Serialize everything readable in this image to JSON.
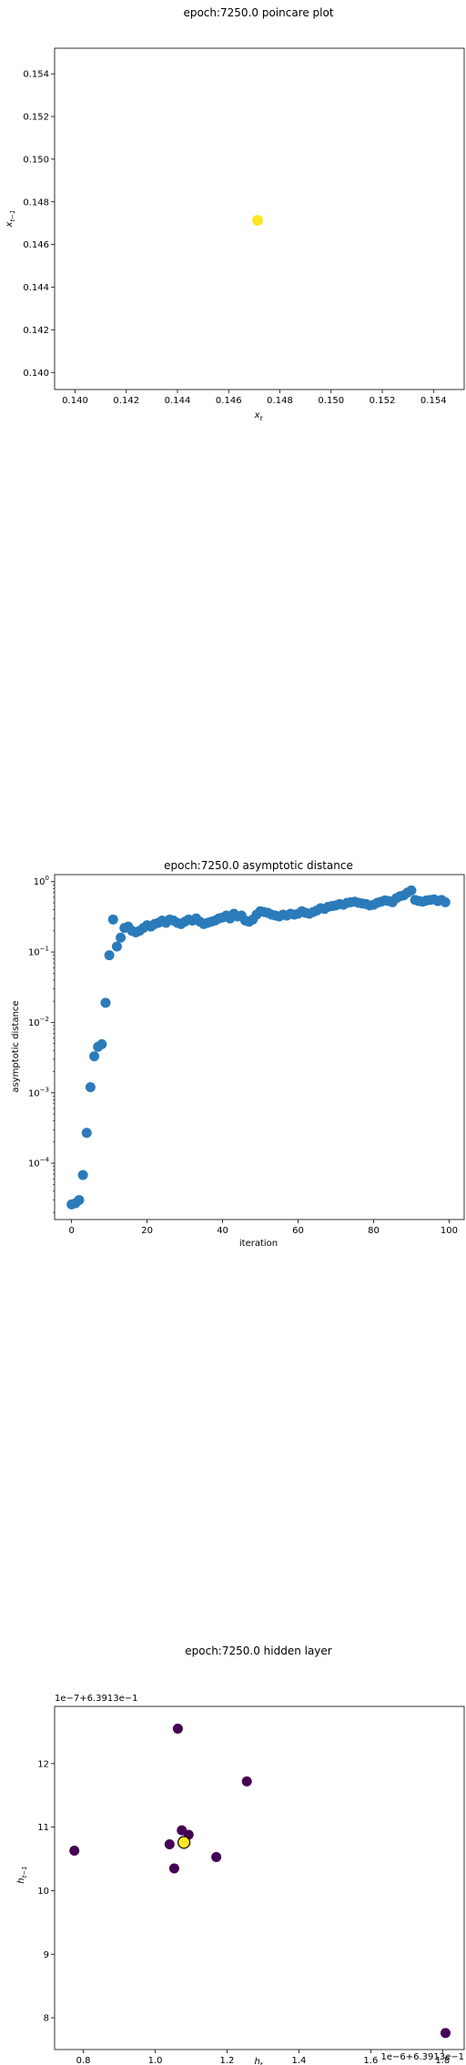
{
  "chart_data": [
    {
      "type": "scatter",
      "title": "epoch:7250.0 poincare plot",
      "xlabel_base": "x",
      "xlabel_sub": "t",
      "ylabel_base": "x",
      "ylabel_sub": "t−1",
      "xlim": [
        0.1392,
        0.1552
      ],
      "ylim": [
        0.1392,
        0.1552
      ],
      "xticks": [
        "0.140",
        "0.142",
        "0.144",
        "0.146",
        "0.148",
        "0.150",
        "0.152",
        "0.154"
      ],
      "yticks": [
        "0.140",
        "0.142",
        "0.144",
        "0.146",
        "0.148",
        "0.150",
        "0.152",
        "0.154"
      ],
      "xtick_values": [
        0.14,
        0.142,
        0.144,
        0.146,
        0.148,
        0.15,
        0.152,
        0.154
      ],
      "ytick_values": [
        0.14,
        0.142,
        0.144,
        0.146,
        0.148,
        0.15,
        0.152,
        0.154
      ],
      "points": [
        {
          "x": 0.14713,
          "y": 0.14713,
          "color": "#fde725"
        }
      ]
    },
    {
      "type": "scatter",
      "title": "epoch:7250.0 asymptotic distance",
      "xlabel": "iteration",
      "ylabel": "asymptotic distance",
      "y_scale": "log",
      "xlim": [
        -4.5,
        104
      ],
      "ylim_log10": [
        -4.8,
        0.1
      ],
      "xticks": [
        "0",
        "20",
        "40",
        "60",
        "80",
        "100"
      ],
      "xtick_values": [
        0,
        20,
        40,
        60,
        80,
        100
      ],
      "yticks": [
        {
          "base": "10",
          "exp": "−4",
          "log": -4
        },
        {
          "base": "10",
          "exp": "−3",
          "log": -3
        },
        {
          "base": "10",
          "exp": "−2",
          "log": -2
        },
        {
          "base": "10",
          "exp": "−1",
          "log": -1
        },
        {
          "base": "10",
          "exp": "0",
          "log": 0
        }
      ],
      "color": "#2b7bba",
      "x": [
        0,
        1,
        2,
        3,
        4,
        5,
        6,
        7,
        8,
        9,
        10,
        11,
        12,
        13,
        14,
        15,
        16,
        17,
        18,
        19,
        20,
        21,
        22,
        23,
        24,
        25,
        26,
        27,
        28,
        29,
        30,
        31,
        32,
        33,
        34,
        35,
        36,
        37,
        38,
        39,
        40,
        41,
        42,
        43,
        44,
        45,
        46,
        47,
        48,
        49,
        50,
        51,
        52,
        53,
        54,
        55,
        56,
        57,
        58,
        59,
        60,
        61,
        62,
        63,
        64,
        65,
        66,
        67,
        68,
        69,
        70,
        71,
        72,
        73,
        74,
        75,
        76,
        77,
        78,
        79,
        80,
        81,
        82,
        83,
        84,
        85,
        86,
        87,
        88,
        89,
        90,
        91,
        92,
        93,
        94,
        95,
        96,
        97,
        98,
        99
      ],
      "y": [
        2.6e-05,
        2.7e-05,
        3e-05,
        6.8e-05,
        0.00027,
        0.0012,
        0.0033,
        0.0045,
        0.0049,
        0.019,
        0.09,
        0.29,
        0.12,
        0.16,
        0.22,
        0.23,
        0.2,
        0.19,
        0.2,
        0.22,
        0.24,
        0.23,
        0.25,
        0.26,
        0.28,
        0.26,
        0.29,
        0.28,
        0.26,
        0.25,
        0.27,
        0.29,
        0.28,
        0.3,
        0.27,
        0.25,
        0.26,
        0.27,
        0.28,
        0.3,
        0.31,
        0.33,
        0.3,
        0.35,
        0.32,
        0.33,
        0.28,
        0.27,
        0.29,
        0.34,
        0.38,
        0.37,
        0.36,
        0.34,
        0.33,
        0.32,
        0.34,
        0.33,
        0.35,
        0.34,
        0.35,
        0.38,
        0.36,
        0.35,
        0.37,
        0.39,
        0.42,
        0.41,
        0.44,
        0.45,
        0.46,
        0.48,
        0.47,
        0.5,
        0.51,
        0.52,
        0.5,
        0.49,
        0.48,
        0.46,
        0.47,
        0.5,
        0.52,
        0.54,
        0.53,
        0.51,
        0.58,
        0.62,
        0.64,
        0.7,
        0.75,
        0.55,
        0.53,
        0.52,
        0.54,
        0.55,
        0.56,
        0.53,
        0.55,
        0.51
      ]
    },
    {
      "type": "scatter",
      "title": "epoch:7250.0 hidden layer",
      "xlabel_base": "h",
      "xlabel_sub": "t",
      "ylabel_base": "h",
      "ylabel_sub": "t−1",
      "x_offset_text": "1e−6+6.3913e−1",
      "y_offset_text": "1e−7+6.3913e−1",
      "xlim": [
        0.72,
        1.86
      ],
      "ylim": [
        7.5,
        12.9
      ],
      "xticks": [
        "0.8",
        "1.0",
        "1.2",
        "1.4",
        "1.6",
        "1.8"
      ],
      "xtick_values": [
        0.8,
        1.0,
        1.2,
        1.4,
        1.6,
        1.8
      ],
      "yticks": [
        "8",
        "9",
        "10",
        "11",
        "12"
      ],
      "ytick_values": [
        8,
        9,
        10,
        11,
        12
      ],
      "points": [
        {
          "x": 1.063,
          "y": 12.55,
          "color": "#440154"
        },
        {
          "x": 1.255,
          "y": 11.72,
          "color": "#440154"
        },
        {
          "x": 0.775,
          "y": 10.63,
          "color": "#440154"
        },
        {
          "x": 1.074,
          "y": 10.95,
          "color": "#440154"
        },
        {
          "x": 1.093,
          "y": 10.88,
          "color": "#440154"
        },
        {
          "x": 1.04,
          "y": 10.73,
          "color": "#440154"
        },
        {
          "x": 1.17,
          "y": 10.53,
          "color": "#440154"
        },
        {
          "x": 1.053,
          "y": 10.35,
          "color": "#440154"
        },
        {
          "x": 1.808,
          "y": 7.76,
          "color": "#440154"
        },
        {
          "x": 1.08,
          "y": 10.76,
          "color": "#fde725",
          "highlight": true
        }
      ]
    }
  ]
}
